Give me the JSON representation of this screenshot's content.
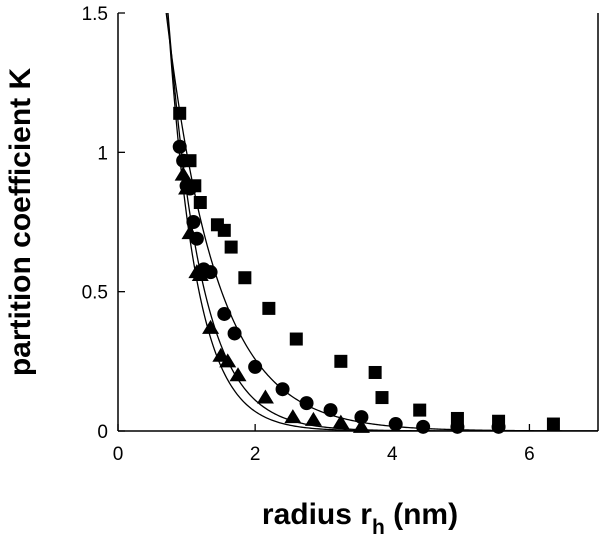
{
  "chart_data": {
    "type": "scatter",
    "title": "",
    "xlabel": "radius r",
    "xlabel_sub": "h",
    "xlabel_unit": " (nm)",
    "ylabel": "partition coefficient K",
    "xlim": [
      0,
      7
    ],
    "ylim": [
      0,
      1.5
    ],
    "xticks": [
      0,
      2,
      4,
      6
    ],
    "yticks": [
      0,
      0.5,
      1,
      1.5
    ],
    "xtick_labels": [
      "0",
      "2",
      "4",
      "6"
    ],
    "ytick_labels": [
      "0",
      "0.5",
      "1",
      "1.5"
    ],
    "grid": false,
    "legend": "none",
    "colors": {
      "marker": "#000000",
      "line": "#000000",
      "axes": "#000000"
    },
    "series": [
      {
        "marker": "square",
        "x": [
          0.9,
          1.05,
          1.12,
          1.2,
          1.45,
          1.55,
          1.65,
          1.85,
          2.2,
          2.6,
          3.25,
          3.75,
          3.85,
          4.4,
          4.95,
          5.55,
          6.35
        ],
        "y": [
          1.14,
          0.97,
          0.88,
          0.82,
          0.74,
          0.72,
          0.66,
          0.55,
          0.44,
          0.33,
          0.25,
          0.21,
          0.12,
          0.075,
          0.045,
          0.035,
          0.025
        ]
      },
      {
        "marker": "circle",
        "x": [
          0.9,
          0.95,
          1.0,
          1.05,
          1.1,
          1.15,
          1.25,
          1.35,
          1.55,
          1.7,
          2.0,
          2.4,
          2.75,
          3.1,
          3.55,
          4.05,
          4.45,
          4.95,
          5.55
        ],
        "y": [
          1.02,
          0.97,
          0.88,
          0.87,
          0.75,
          0.69,
          0.58,
          0.57,
          0.42,
          0.35,
          0.23,
          0.15,
          0.1,
          0.075,
          0.05,
          0.025,
          0.015,
          0.015,
          0.015
        ]
      },
      {
        "marker": "triangle",
        "x": [
          0.95,
          1.0,
          1.05,
          1.15,
          1.2,
          1.35,
          1.5,
          1.6,
          1.75,
          2.15,
          2.55,
          2.85,
          3.25,
          3.55
        ],
        "y": [
          0.92,
          0.87,
          0.71,
          0.57,
          0.56,
          0.37,
          0.27,
          0.25,
          0.2,
          0.12,
          0.05,
          0.04,
          0.03,
          0.015
        ]
      }
    ],
    "fit_curves": [
      {
        "form": "K = a*exp(-b*x)",
        "a": 3.9,
        "b": 1.359,
        "x_range": [
          0.55,
          7.0
        ]
      },
      {
        "form": "K = a*exp(-b*x)",
        "a": 6.68,
        "b": 2.049,
        "x_range": [
          0.55,
          7.0
        ]
      },
      {
        "form": "K = a*exp(-b*x)",
        "a": 8.57,
        "b": 2.403,
        "x_range": [
          0.55,
          7.0
        ]
      }
    ]
  }
}
